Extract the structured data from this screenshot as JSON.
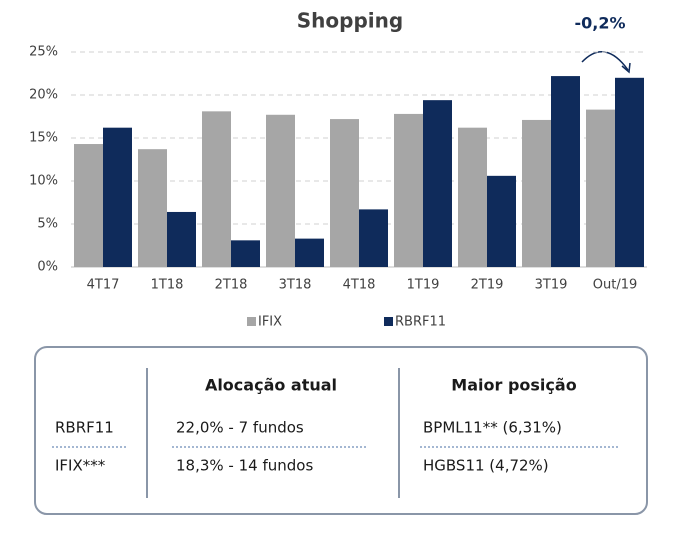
{
  "chart_data": {
    "type": "bar",
    "title": "Shopping",
    "categories": [
      "4T17",
      "1T18",
      "2T18",
      "3T18",
      "4T18",
      "1T19",
      "2T19",
      "3T19",
      "Out/19"
    ],
    "series": [
      {
        "name": "IFIX",
        "color": "#a6a6a6",
        "values": [
          14.3,
          13.7,
          18.1,
          17.7,
          17.2,
          17.8,
          16.2,
          17.1,
          18.3
        ]
      },
      {
        "name": "RBRF11",
        "color": "#0f2b5b",
        "values": [
          16.2,
          6.4,
          3.1,
          3.3,
          6.7,
          19.4,
          10.6,
          22.2,
          22.0
        ]
      }
    ],
    "ylim": [
      0,
      25
    ],
    "yticks": [
      {
        "value": 0,
        "label": "0%"
      },
      {
        "value": 5,
        "label": "5%"
      },
      {
        "value": 10,
        "label": "10%"
      },
      {
        "value": 15,
        "label": "15%"
      },
      {
        "value": 20,
        "label": "20%"
      },
      {
        "value": 25,
        "label": "25%"
      }
    ],
    "grid": true,
    "annotation": "-0,2%"
  },
  "table": {
    "headers": [
      "Alocação atual",
      "Maior posição"
    ],
    "rows": [
      [
        "RBRF11",
        "22,0% - 7 fundos",
        "BPML11** (6,31%)"
      ],
      [
        "IFIX***",
        "18,3% - 14 fundos",
        "HGBS11 (4,72%)"
      ]
    ]
  }
}
